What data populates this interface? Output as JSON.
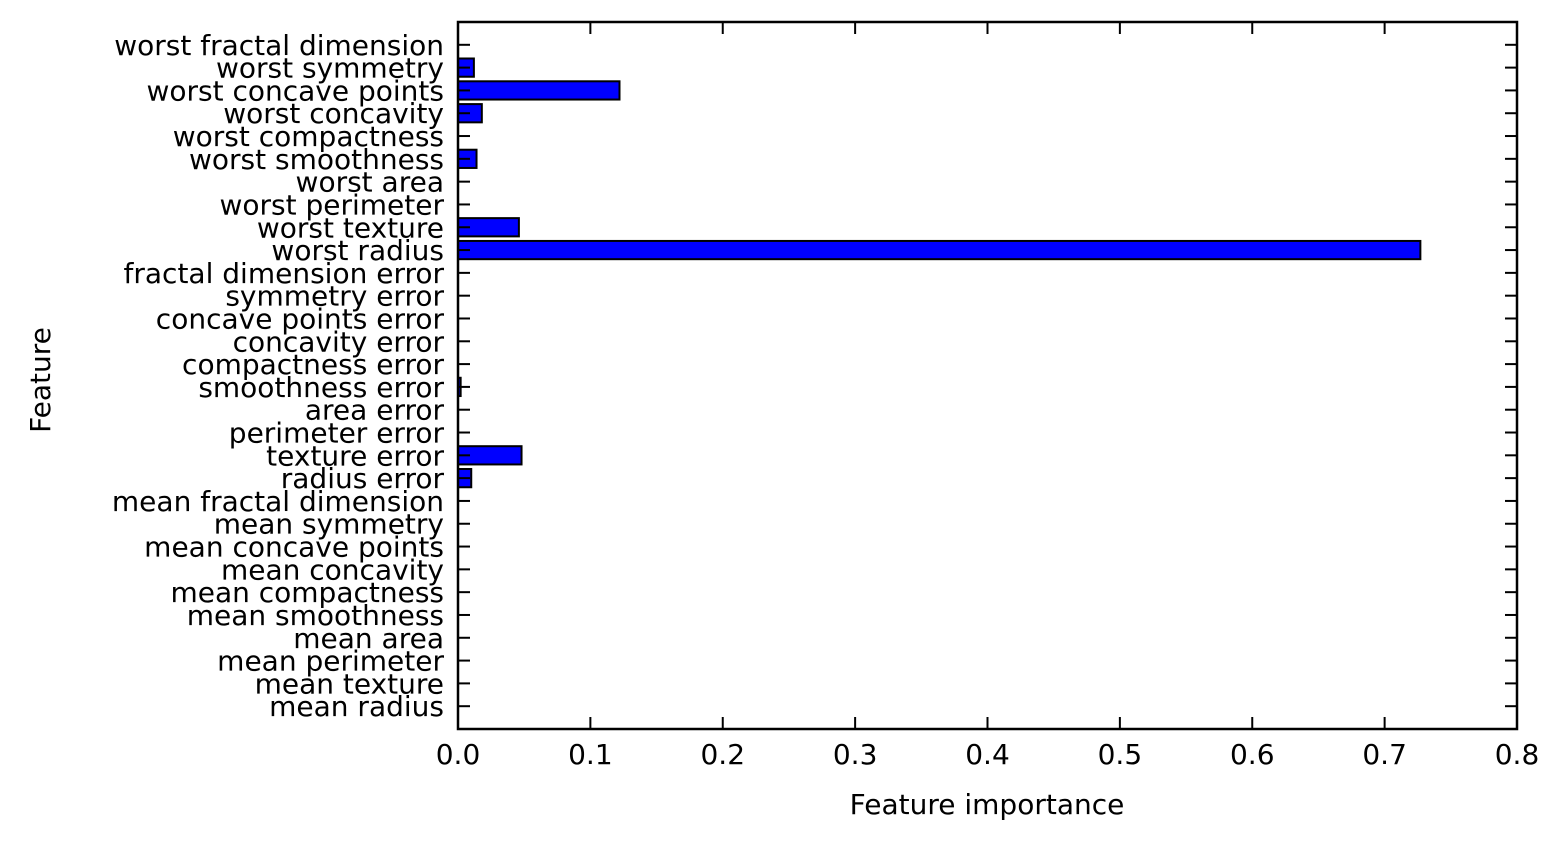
{
  "chart_data": {
    "type": "bar",
    "orientation": "horizontal",
    "categories": [
      "mean radius",
      "mean texture",
      "mean perimeter",
      "mean area",
      "mean smoothness",
      "mean compactness",
      "mean concavity",
      "mean concave points",
      "mean symmetry",
      "mean fractal dimension",
      "radius error",
      "texture error",
      "perimeter error",
      "area error",
      "smoothness error",
      "compactness error",
      "concavity error",
      "concave points error",
      "symmetry error",
      "fractal dimension error",
      "worst radius",
      "worst texture",
      "worst perimeter",
      "worst area",
      "worst smoothness",
      "worst compactness",
      "worst concavity",
      "worst concave points",
      "worst symmetry",
      "worst fractal dimension"
    ],
    "values": [
      0,
      0,
      0,
      0,
      0,
      0,
      0,
      0,
      0,
      0,
      0.01,
      0.048,
      0,
      0,
      0.002,
      0,
      0,
      0,
      0,
      0,
      0.727,
      0.046,
      0,
      0,
      0.014,
      0,
      0.018,
      0.122,
      0.012,
      0
    ],
    "xlabel": "Feature importance",
    "ylabel": "Feature",
    "xlim": [
      0,
      0.8
    ],
    "xticks": [
      "0.0",
      "0.1",
      "0.2",
      "0.3",
      "0.4",
      "0.5",
      "0.6",
      "0.7",
      "0.8"
    ],
    "bar_color": "#0000ff",
    "edge_color": "#000000",
    "grid": false
  }
}
